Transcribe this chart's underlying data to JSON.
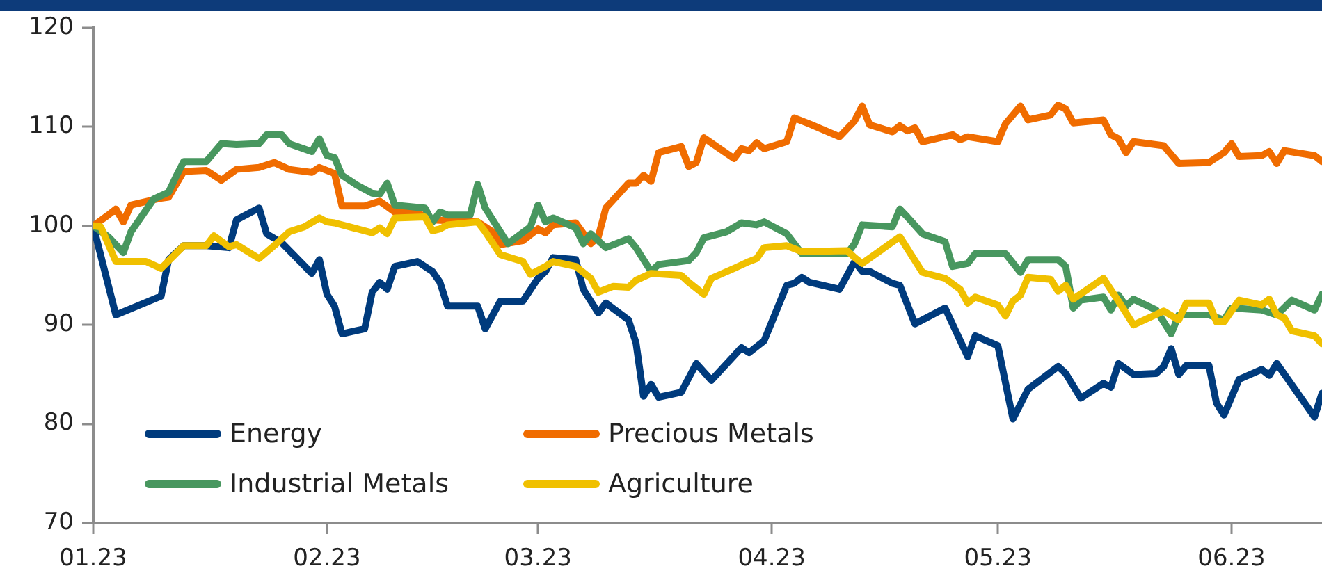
{
  "chart_data": {
    "type": "line",
    "xlim": [
      "2023-01-01",
      "2023-06-13"
    ],
    "xticks": [
      {
        "value": "2023-01-01",
        "label": "01.23"
      },
      {
        "value": "2023-02-01",
        "label": "02.23"
      },
      {
        "value": "2023-03-01",
        "label": "03.23"
      },
      {
        "value": "2023-04-01",
        "label": "04.23"
      },
      {
        "value": "2023-05-01",
        "label": "05.23"
      },
      {
        "value": "2023-06-01",
        "label": "06.23"
      }
    ],
    "ylim": [
      70,
      120
    ],
    "yticks": [
      70,
      80,
      90,
      100,
      110,
      120
    ],
    "legend": "bottom left",
    "marker": "none",
    "line_style": "solid",
    "series": [
      {
        "name": "Energy",
        "color": "#003b7d",
        "x": [
          "2023-01-01",
          "2023-01-04",
          "2023-01-10",
          "2023-01-11",
          "2023-01-13",
          "2023-01-16",
          "2023-01-19",
          "2023-01-20",
          "2023-01-23",
          "2023-01-24",
          "2023-01-26",
          "2023-01-30",
          "2023-01-31",
          "2023-02-01",
          "2023-02-02",
          "2023-02-03",
          "2023-02-06",
          "2023-02-07",
          "2023-02-08",
          "2023-02-09",
          "2023-02-10",
          "2023-02-13",
          "2023-02-15",
          "2023-02-16",
          "2023-02-17",
          "2023-02-21",
          "2023-02-22",
          "2023-02-24",
          "2023-02-27",
          "2023-03-01",
          "2023-03-02",
          "2023-03-03",
          "2023-03-06",
          "2023-03-07",
          "2023-03-09",
          "2023-03-10",
          "2023-03-13",
          "2023-03-14",
          "2023-03-15",
          "2023-03-16",
          "2023-03-17",
          "2023-03-20",
          "2023-03-22",
          "2023-03-24",
          "2023-03-28",
          "2023-03-29",
          "2023-03-31",
          "2023-04-03",
          "2023-04-04",
          "2023-04-05",
          "2023-04-06",
          "2023-04-10",
          "2023-04-12",
          "2023-04-13",
          "2023-04-14",
          "2023-04-17",
          "2023-04-18",
          "2023-04-20",
          "2023-04-24",
          "2023-04-27",
          "2023-04-28",
          "2023-05-01",
          "2023-05-03",
          "2023-05-05",
          "2023-05-09",
          "2023-05-10",
          "2023-05-12",
          "2023-05-15",
          "2023-05-16",
          "2023-05-17",
          "2023-05-19",
          "2023-05-22",
          "2023-05-23",
          "2023-05-24",
          "2023-05-25",
          "2023-05-26",
          "2023-05-29",
          "2023-05-30",
          "2023-05-31",
          "2023-06-02",
          "2023-06-05",
          "2023-06-06",
          "2023-06-07",
          "2023-06-12",
          "2023-06-13"
        ],
        "values": [
          100,
          91.0,
          92.9,
          96.6,
          98.0,
          98.0,
          97.8,
          100.6,
          101.8,
          99.2,
          98.3,
          95.2,
          96.6,
          93.1,
          91.9,
          89.1,
          89.6,
          93.3,
          94.3,
          93.6,
          95.9,
          96.4,
          95.4,
          94.3,
          91.9,
          91.9,
          89.6,
          92.4,
          92.4,
          94.7,
          95.4,
          96.8,
          96.6,
          93.6,
          91.2,
          92.2,
          90.5,
          88.2,
          82.8,
          84.0,
          82.7,
          83.2,
          86.1,
          84.4,
          87.7,
          87.2,
          88.4,
          94.0,
          94.2,
          94.8,
          94.3,
          93.6,
          96.4,
          95.4,
          95.4,
          94.2,
          94.0,
          90.1,
          91.7,
          86.8,
          88.9,
          87.9,
          80.5,
          83.5,
          85.8,
          85.1,
          82.6,
          84.1,
          83.7,
          86.1,
          85.0,
          85.1,
          85.8,
          87.6,
          85.0,
          85.9,
          85.9,
          82.1,
          80.9,
          84.5,
          85.5,
          84.9,
          86.1,
          80.7,
          83.1
        ]
      },
      {
        "name": "Precious Metals",
        "color": "#f06c00",
        "x": [
          "2023-01-01",
          "2023-01-03",
          "2023-01-04",
          "2023-01-05",
          "2023-01-06",
          "2023-01-10",
          "2023-01-11",
          "2023-01-13",
          "2023-01-16",
          "2023-01-18",
          "2023-01-20",
          "2023-01-23",
          "2023-01-25",
          "2023-01-27",
          "2023-01-30",
          "2023-01-31",
          "2023-02-02",
          "2023-02-03",
          "2023-02-06",
          "2023-02-08",
          "2023-02-10",
          "2023-02-13",
          "2023-02-15",
          "2023-02-21",
          "2023-02-23",
          "2023-02-24",
          "2023-02-27",
          "2023-03-01",
          "2023-03-02",
          "2023-03-03",
          "2023-03-06",
          "2023-03-08",
          "2023-03-09",
          "2023-03-10",
          "2023-03-13",
          "2023-03-14",
          "2023-03-15",
          "2023-03-16",
          "2023-03-17",
          "2023-03-20",
          "2023-03-21",
          "2023-03-22",
          "2023-03-23",
          "2023-03-27",
          "2023-03-28",
          "2023-03-29",
          "2023-03-30",
          "2023-03-31",
          "2023-04-03",
          "2023-04-04",
          "2023-04-06",
          "2023-04-10",
          "2023-04-12",
          "2023-04-13",
          "2023-04-14",
          "2023-04-17",
          "2023-04-18",
          "2023-04-19",
          "2023-04-20",
          "2023-04-21",
          "2023-04-25",
          "2023-04-26",
          "2023-04-27",
          "2023-05-01",
          "2023-05-02",
          "2023-05-04",
          "2023-05-05",
          "2023-05-08",
          "2023-05-09",
          "2023-05-10",
          "2023-05-11",
          "2023-05-15",
          "2023-05-16",
          "2023-05-17",
          "2023-05-18",
          "2023-05-19",
          "2023-05-23",
          "2023-05-25",
          "2023-05-29",
          "2023-05-31",
          "2023-06-01",
          "2023-06-02",
          "2023-06-05",
          "2023-06-06",
          "2023-06-07",
          "2023-06-08",
          "2023-06-12",
          "2023-06-13"
        ],
        "values": [
          100,
          101.1,
          101.7,
          100.4,
          102.1,
          102.8,
          102.9,
          105.5,
          105.6,
          104.6,
          105.7,
          105.9,
          106.4,
          105.7,
          105.4,
          105.9,
          105.3,
          102.0,
          102.0,
          102.5,
          101.4,
          101.3,
          100.6,
          100.4,
          99.4,
          98.1,
          98.5,
          99.7,
          99.3,
          100.1,
          100.3,
          98.2,
          98.9,
          101.8,
          104.3,
          104.3,
          105.1,
          104.5,
          107.4,
          108.0,
          106.0,
          106.4,
          108.9,
          106.8,
          107.8,
          107.6,
          108.4,
          107.8,
          108.5,
          110.9,
          110.3,
          109.0,
          110.6,
          112.1,
          110.2,
          109.5,
          110.1,
          109.6,
          109.9,
          108.5,
          109.2,
          108.7,
          109.0,
          108.5,
          110.3,
          112.1,
          110.7,
          111.2,
          112.2,
          111.8,
          110.4,
          110.7,
          109.2,
          108.8,
          107.4,
          108.5,
          108.1,
          106.3,
          106.4,
          107.4,
          108.3,
          107.0,
          107.1,
          107.5,
          106.3,
          107.6,
          107.1,
          106.5
        ]
      },
      {
        "name": "Industrial Metals",
        "color": "#48975f",
        "x": [
          "2023-01-01",
          "2023-01-03",
          "2023-01-05",
          "2023-01-06",
          "2023-01-09",
          "2023-01-11",
          "2023-01-12",
          "2023-01-13",
          "2023-01-16",
          "2023-01-18",
          "2023-01-20",
          "2023-01-23",
          "2023-01-24",
          "2023-01-26",
          "2023-01-27",
          "2023-01-30",
          "2023-01-31",
          "2023-02-01",
          "2023-02-02",
          "2023-02-03",
          "2023-02-05",
          "2023-02-07",
          "2023-02-08",
          "2023-02-09",
          "2023-02-10",
          "2023-02-14",
          "2023-02-15",
          "2023-02-16",
          "2023-02-17",
          "2023-02-20",
          "2023-02-21",
          "2023-02-22",
          "2023-02-25",
          "2023-02-28",
          "2023-03-01",
          "2023-03-02",
          "2023-03-03",
          "2023-03-06",
          "2023-03-07",
          "2023-03-08",
          "2023-03-10",
          "2023-03-13",
          "2023-03-14",
          "2023-03-16",
          "2023-03-17",
          "2023-03-21",
          "2023-03-22",
          "2023-03-23",
          "2023-03-26",
          "2023-03-28",
          "2023-03-30",
          "2023-03-31",
          "2023-04-03",
          "2023-04-05",
          "2023-04-11",
          "2023-04-12",
          "2023-04-13",
          "2023-04-17",
          "2023-04-18",
          "2023-04-19",
          "2023-04-21",
          "2023-04-24",
          "2023-04-25",
          "2023-04-27",
          "2023-04-28",
          "2023-05-02",
          "2023-05-04",
          "2023-05-05",
          "2023-05-09",
          "2023-05-10",
          "2023-05-11",
          "2023-05-12",
          "2023-05-15",
          "2023-05-16",
          "2023-05-17",
          "2023-05-18",
          "2023-05-19",
          "2023-05-22",
          "2023-05-24",
          "2023-05-25",
          "2023-05-29",
          "2023-05-31",
          "2023-06-01",
          "2023-06-05",
          "2023-06-07",
          "2023-06-09",
          "2023-06-12",
          "2023-06-13"
        ],
        "values": [
          100,
          98.9,
          97.3,
          99.4,
          102.7,
          103.4,
          105.0,
          106.5,
          106.5,
          108.3,
          108.2,
          108.3,
          109.2,
          109.2,
          108.3,
          107.5,
          108.8,
          107.1,
          106.9,
          105.1,
          104.1,
          103.3,
          103.2,
          104.3,
          102.1,
          101.8,
          100.4,
          101.4,
          101.1,
          101.1,
          104.2,
          101.8,
          98.2,
          99.9,
          102.1,
          100.4,
          100.8,
          99.8,
          98.2,
          99.2,
          97.8,
          98.7,
          97.8,
          95.4,
          96.1,
          96.5,
          97.3,
          98.8,
          99.4,
          100.3,
          100.1,
          100.4,
          99.2,
          97.2,
          97.2,
          98.2,
          100.1,
          99.9,
          101.7,
          100.9,
          99.2,
          98.4,
          95.9,
          96.2,
          97.2,
          97.2,
          95.3,
          96.6,
          96.6,
          95.9,
          91.7,
          92.5,
          92.8,
          91.5,
          93.0,
          91.9,
          92.6,
          91.5,
          89.1,
          91.0,
          91.0,
          90.5,
          91.7,
          91.5,
          91.0,
          92.5,
          91.5,
          93.1
        ]
      },
      {
        "name": "Agriculture",
        "color": "#f0c000",
        "x": [
          "2023-01-01",
          "2023-01-02",
          "2023-01-04",
          "2023-01-08",
          "2023-01-10",
          "2023-01-13",
          "2023-01-16",
          "2023-01-17",
          "2023-01-19",
          "2023-01-20",
          "2023-01-23",
          "2023-01-25",
          "2023-01-27",
          "2023-01-29",
          "2023-01-31",
          "2023-02-01",
          "2023-02-02",
          "2023-02-07",
          "2023-02-08",
          "2023-02-09",
          "2023-02-10",
          "2023-02-14",
          "2023-02-15",
          "2023-02-16",
          "2023-02-17",
          "2023-02-21",
          "2023-02-22",
          "2023-02-24",
          "2023-02-27",
          "2023-02-28",
          "2023-03-02",
          "2023-03-03",
          "2023-03-06",
          "2023-03-08",
          "2023-03-09",
          "2023-03-11",
          "2023-03-13",
          "2023-03-14",
          "2023-03-16",
          "2023-03-20",
          "2023-03-21",
          "2023-03-23",
          "2023-03-24",
          "2023-03-27",
          "2023-03-29",
          "2023-03-30",
          "2023-03-31",
          "2023-04-03",
          "2023-04-05",
          "2023-04-11",
          "2023-04-12",
          "2023-04-13",
          "2023-04-18",
          "2023-04-21",
          "2023-04-24",
          "2023-04-26",
          "2023-04-27",
          "2023-04-28",
          "2023-05-01",
          "2023-05-02",
          "2023-05-03",
          "2023-05-04",
          "2023-05-05",
          "2023-05-08",
          "2023-05-09",
          "2023-05-10",
          "2023-05-11",
          "2023-05-15",
          "2023-05-17",
          "2023-05-19",
          "2023-05-23",
          "2023-05-25",
          "2023-05-26",
          "2023-05-29",
          "2023-05-30",
          "2023-05-31",
          "2023-06-02",
          "2023-06-05",
          "2023-06-06",
          "2023-06-07",
          "2023-06-08",
          "2023-06-09",
          "2023-06-12",
          "2023-06-13"
        ],
        "values": [
          100,
          99.9,
          96.4,
          96.4,
          95.7,
          98.0,
          98.0,
          99.0,
          97.9,
          98.1,
          96.7,
          98.0,
          99.4,
          99.9,
          100.8,
          100.4,
          100.3,
          99.3,
          99.8,
          99.2,
          100.8,
          100.9,
          99.5,
          99.7,
          100.1,
          100.4,
          99.4,
          97.1,
          96.4,
          95.1,
          95.9,
          96.4,
          95.9,
          94.7,
          93.3,
          93.9,
          93.8,
          94.5,
          95.2,
          95.0,
          94.3,
          93.1,
          94.7,
          95.7,
          96.4,
          96.7,
          97.8,
          98.0,
          97.4,
          97.5,
          96.8,
          96.2,
          98.9,
          95.3,
          94.7,
          93.6,
          92.2,
          92.8,
          92.0,
          90.9,
          92.4,
          93.0,
          94.8,
          94.6,
          93.4,
          94.0,
          92.6,
          94.7,
          92.4,
          90.0,
          91.4,
          90.5,
          92.2,
          92.2,
          90.3,
          90.3,
          92.5,
          92.0,
          92.6,
          91.0,
          90.7,
          89.4,
          88.9,
          88.1
        ]
      }
    ]
  }
}
